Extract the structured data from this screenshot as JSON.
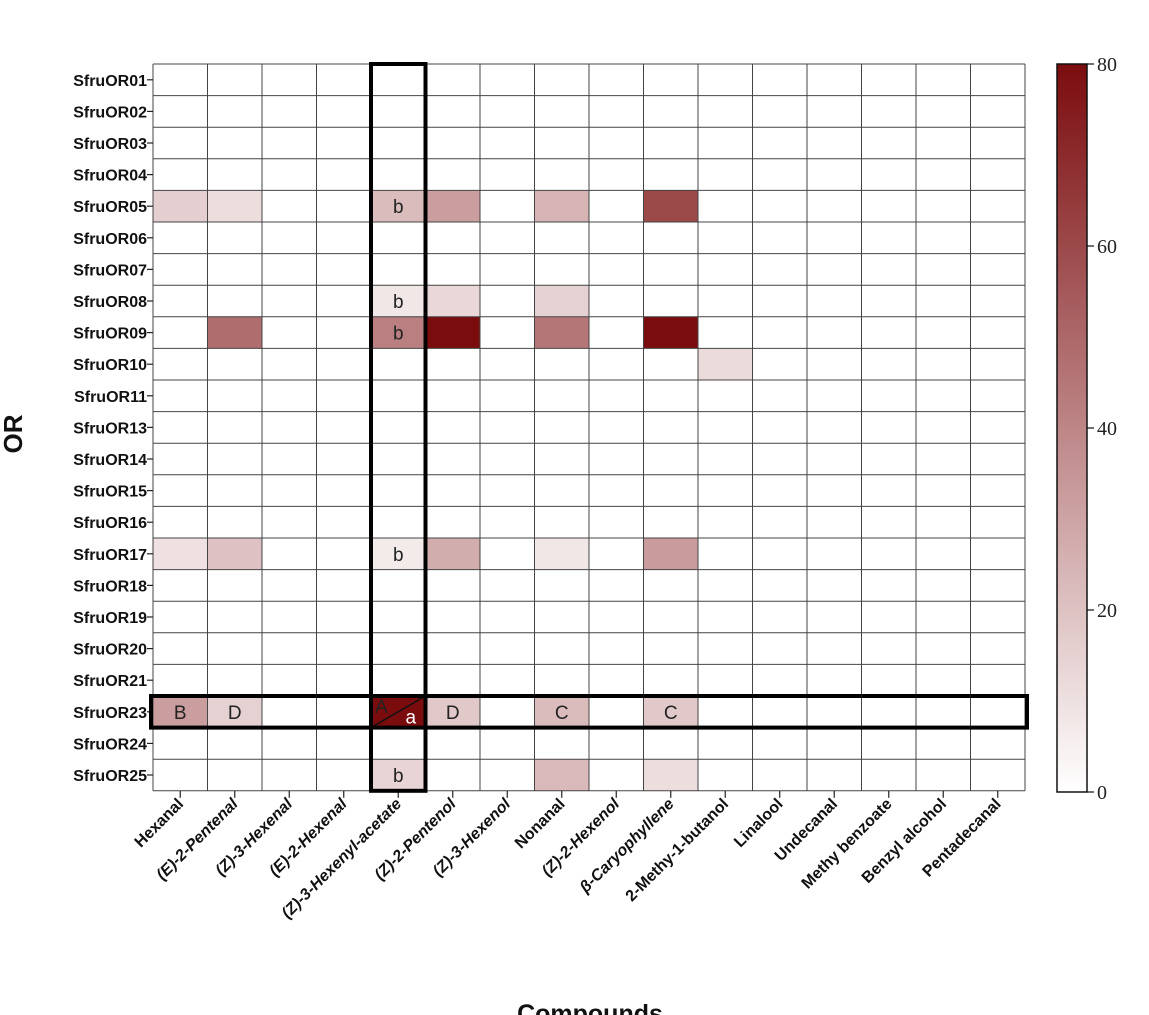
{
  "chart_data": {
    "type": "heatmap",
    "xlabel": "Compounds",
    "ylabel": "OR",
    "rows": [
      "SfruOR01",
      "SfruOR02",
      "SfruOR03",
      "SfruOR04",
      "SfruOR05",
      "SfruOR06",
      "SfruOR07",
      "SfruOR08",
      "SfruOR09",
      "SfruOR10",
      "SfruOR11",
      "SfruOR13",
      "SfruOR14",
      "SfruOR15",
      "SfruOR16",
      "SfruOR17",
      "SfruOR18",
      "SfruOR19",
      "SfruOR20",
      "SfruOR21",
      "SfruOR23",
      "SfruOR24",
      "SfruOR25"
    ],
    "columns": [
      "Hexanal",
      "(E)-2-Pentenal",
      "(Z)-3-Hexenal",
      "(E)-2-Hexenal",
      "(Z)-3-Hexenyl-acetate",
      "(Z)-2-Pentenol",
      "(Z)-3-Hexenol",
      "Nonanal",
      "(Z)-2-Hexenol",
      "β-Caryophyllene",
      "2-Methy-1-butanol",
      "Linalool",
      "Undecanal",
      "Methy benzoate",
      "Benzyl alcohol",
      "Pentadecanal"
    ],
    "values": [
      [
        0,
        0,
        0,
        0,
        0,
        0,
        0,
        0,
        0,
        0,
        0,
        0,
        0,
        0,
        0,
        0
      ],
      [
        0,
        0,
        0,
        0,
        0,
        0,
        0,
        0,
        0,
        0,
        0,
        0,
        0,
        0,
        0,
        0
      ],
      [
        0,
        0,
        0,
        0,
        0,
        0,
        0,
        0,
        0,
        0,
        0,
        0,
        0,
        0,
        0,
        0
      ],
      [
        0,
        0,
        0,
        0,
        0,
        0,
        0,
        0,
        0,
        0,
        0,
        0,
        0,
        0,
        0,
        0
      ],
      [
        16,
        11,
        0,
        0,
        22,
        32,
        0,
        25,
        0,
        60,
        0,
        0,
        0,
        0,
        0,
        0
      ],
      [
        0,
        0,
        0,
        0,
        0,
        0,
        0,
        0,
        0,
        0,
        0,
        0,
        0,
        0,
        0,
        0
      ],
      [
        0,
        0,
        0,
        0,
        0,
        0,
        0,
        0,
        0,
        0,
        0,
        0,
        0,
        0,
        0,
        0
      ],
      [
        0,
        0,
        0,
        0,
        8,
        13,
        0,
        15,
        0,
        0,
        0,
        0,
        0,
        0,
        0,
        0
      ],
      [
        0,
        48,
        0,
        0,
        42,
        80,
        0,
        45,
        0,
        80,
        0,
        0,
        0,
        0,
        0,
        0
      ],
      [
        0,
        0,
        0,
        0,
        0,
        0,
        0,
        0,
        0,
        0,
        12,
        0,
        0,
        0,
        0,
        0
      ],
      [
        0,
        0,
        0,
        0,
        0,
        0,
        0,
        0,
        0,
        0,
        0,
        0,
        0,
        0,
        0,
        0
      ],
      [
        0,
        0,
        0,
        0,
        0,
        0,
        0,
        0,
        0,
        0,
        0,
        0,
        0,
        0,
        0,
        0
      ],
      [
        0,
        0,
        0,
        0,
        0,
        0,
        0,
        0,
        0,
        0,
        0,
        0,
        0,
        0,
        0,
        0
      ],
      [
        0,
        0,
        0,
        0,
        0,
        0,
        0,
        0,
        0,
        0,
        0,
        0,
        0,
        0,
        0,
        0
      ],
      [
        0,
        0,
        0,
        0,
        0,
        0,
        0,
        0,
        0,
        0,
        0,
        0,
        0,
        0,
        0,
        0
      ],
      [
        10,
        20,
        0,
        0,
        7,
        27,
        0,
        8,
        0,
        33,
        0,
        0,
        0,
        0,
        0,
        0
      ],
      [
        0,
        0,
        0,
        0,
        0,
        0,
        0,
        0,
        0,
        0,
        0,
        0,
        0,
        0,
        0,
        0
      ],
      [
        0,
        0,
        0,
        0,
        0,
        0,
        0,
        0,
        0,
        0,
        0,
        0,
        0,
        0,
        0,
        0
      ],
      [
        0,
        0,
        0,
        0,
        0,
        0,
        0,
        0,
        0,
        0,
        0,
        0,
        0,
        0,
        0,
        0
      ],
      [
        0,
        0,
        0,
        0,
        0,
        0,
        0,
        0,
        0,
        0,
        0,
        0,
        0,
        0,
        0,
        0
      ],
      [
        32,
        15,
        0,
        0,
        80,
        18,
        0,
        22,
        0,
        18,
        0,
        0,
        0,
        0,
        0,
        0
      ],
      [
        0,
        0,
        0,
        0,
        0,
        0,
        0,
        0,
        0,
        0,
        0,
        0,
        0,
        0,
        0,
        0
      ],
      [
        0,
        0,
        0,
        0,
        14,
        0,
        0,
        23,
        0,
        11,
        0,
        0,
        0,
        0,
        0,
        0
      ]
    ],
    "annotations": [
      {
        "row": "SfruOR05",
        "column": "(Z)-3-Hexenyl-acetate",
        "text": "b"
      },
      {
        "row": "SfruOR08",
        "column": "(Z)-3-Hexenyl-acetate",
        "text": "b"
      },
      {
        "row": "SfruOR09",
        "column": "(Z)-3-Hexenyl-acetate",
        "text": "b"
      },
      {
        "row": "SfruOR17",
        "column": "(Z)-3-Hexenyl-acetate",
        "text": "b"
      },
      {
        "row": "SfruOR25",
        "column": "(Z)-3-Hexenyl-acetate",
        "text": "b"
      },
      {
        "row": "SfruOR23",
        "column": "Hexanal",
        "text": "B"
      },
      {
        "row": "SfruOR23",
        "column": "(E)-2-Pentenal",
        "text": "D"
      },
      {
        "row": "SfruOR23",
        "column": "(Z)-2-Pentenol",
        "text": "D"
      },
      {
        "row": "SfruOR23",
        "column": "Nonanal",
        "text": "C"
      },
      {
        "row": "SfruOR23",
        "column": "β-Caryophyllene",
        "text": "C"
      }
    ],
    "split_cell": {
      "row": "SfruOR23",
      "column": "(Z)-3-Hexenyl-acetate",
      "upper_left": "A",
      "lower_right": "a"
    },
    "highlighted_row": "SfruOR23",
    "highlighted_column": "(Z)-3-Hexenyl-acetate",
    "colorbar": {
      "min": 0,
      "max": 80,
      "ticks": [
        0,
        20,
        40,
        60,
        80
      ],
      "low_color": "#ffffff",
      "high_color": "#7b0c0e"
    }
  }
}
